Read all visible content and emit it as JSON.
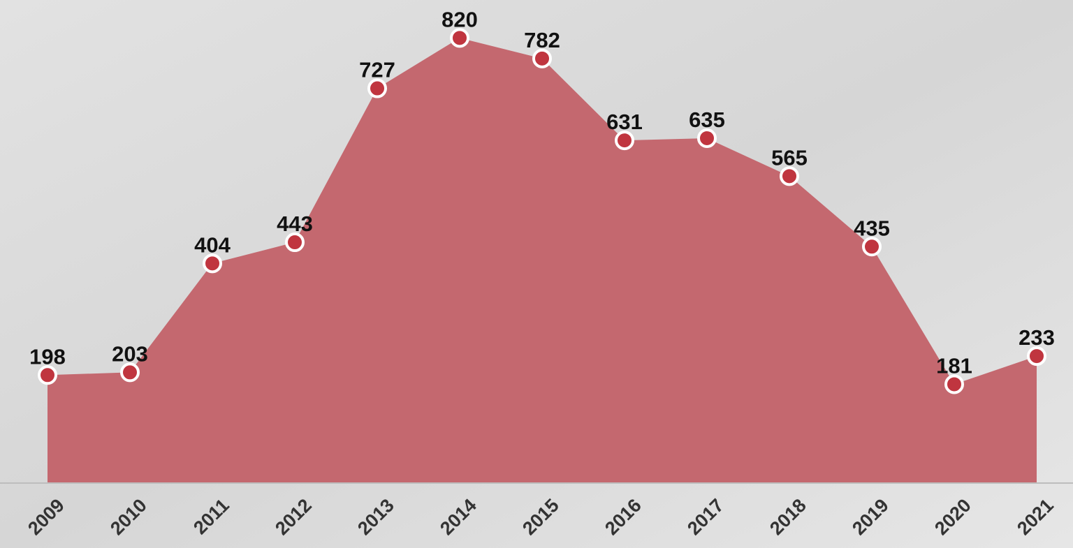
{
  "chart_data": {
    "type": "area",
    "categories": [
      "2009",
      "2010",
      "2011",
      "2012",
      "2013",
      "2014",
      "2015",
      "2016",
      "2017",
      "2018",
      "2019",
      "2020",
      "2021"
    ],
    "values": [
      198,
      203,
      404,
      443,
      727,
      820,
      782,
      631,
      635,
      565,
      435,
      181,
      233
    ],
    "color": "#c4686f",
    "marker_color": "#c0353f",
    "ylim": [
      0,
      890
    ]
  }
}
